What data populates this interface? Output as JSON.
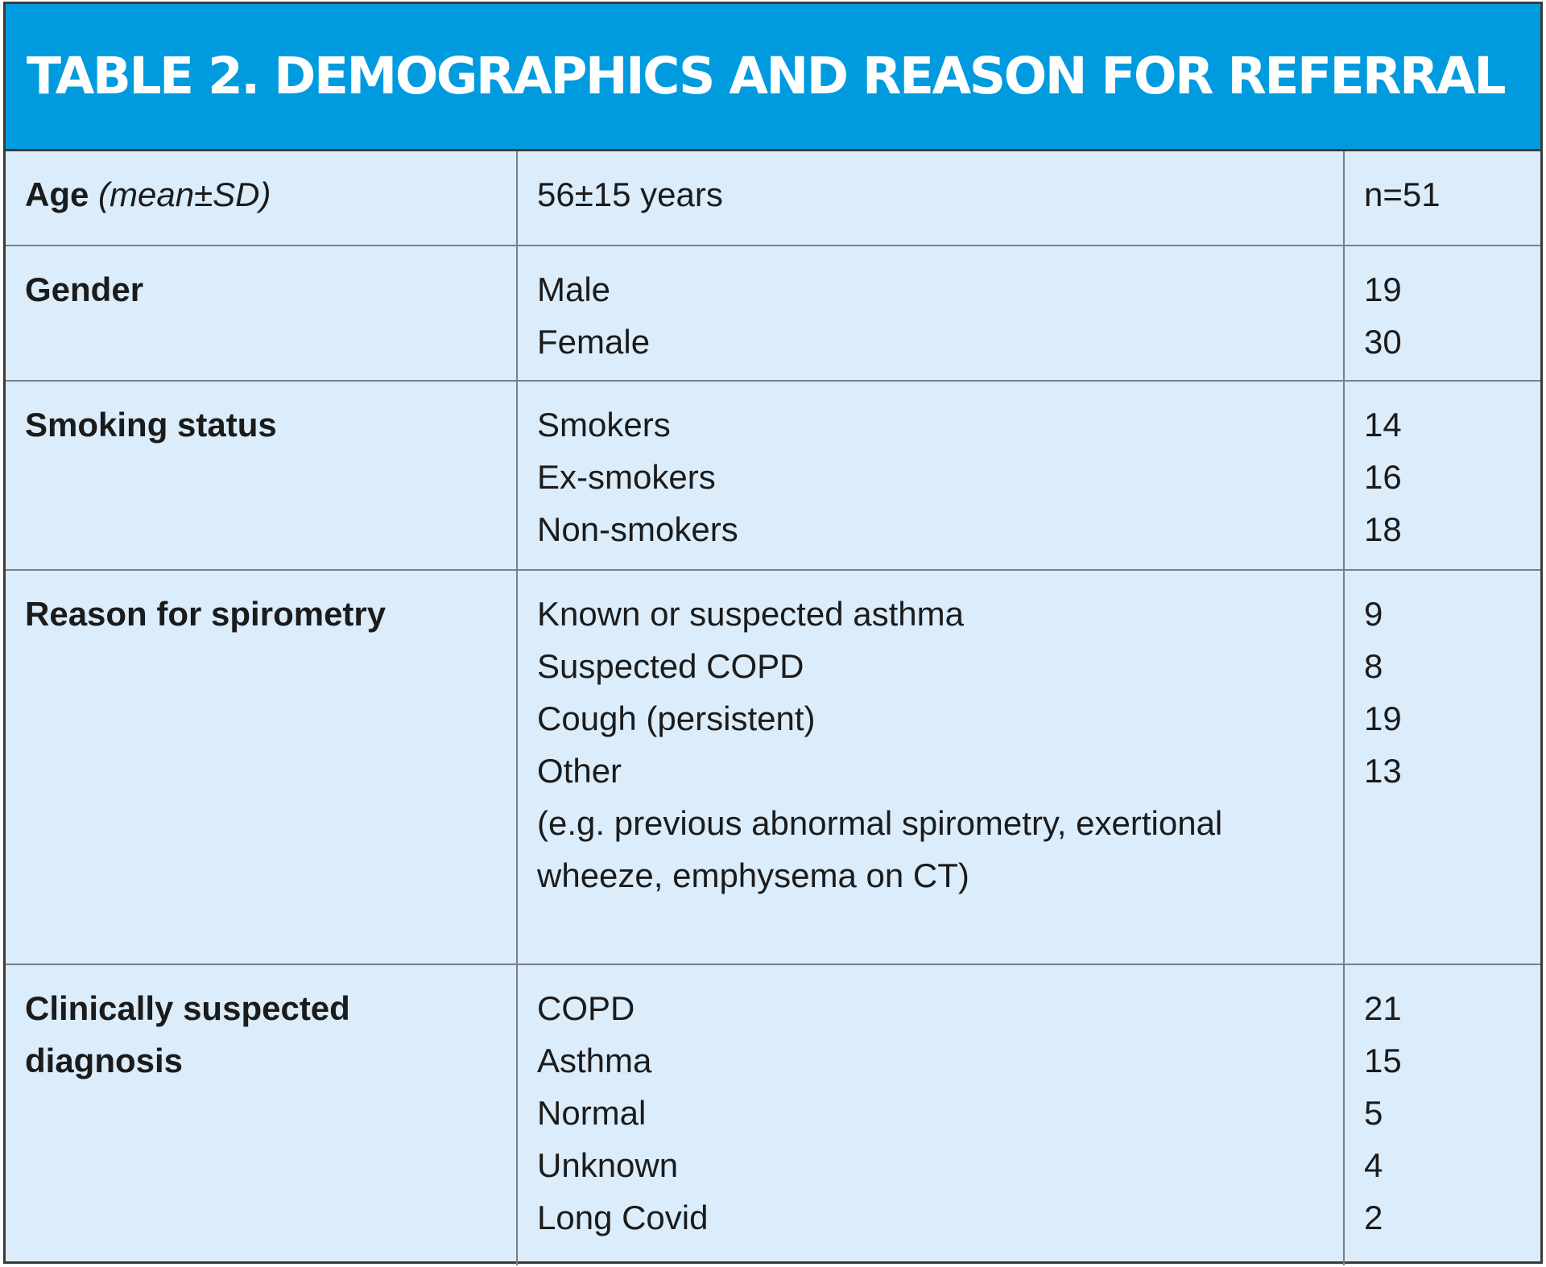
{
  "table": {
    "title": "TABLE 2. DEMOGRAPHICS AND REASON FOR REFERRAL",
    "rows": [
      {
        "label": "Age",
        "label_suffix": "(mean±SD)",
        "items": [
          "56±15 years"
        ],
        "values": [
          "n=51"
        ]
      },
      {
        "label": "Gender",
        "items": [
          "Male",
          "Female"
        ],
        "values": [
          "19",
          "30"
        ]
      },
      {
        "label": "Smoking status",
        "items": [
          "Smokers",
          "Ex-smokers",
          "Non-smokers"
        ],
        "values": [
          "14",
          "16",
          "18"
        ]
      },
      {
        "label": "Reason for spirometry",
        "items": [
          "Known or suspected asthma",
          "Suspected COPD",
          "Cough (persistent)",
          "Other",
          "(e.g. previous abnormal spirometry, exertional wheeze, emphysema on CT)"
        ],
        "values": [
          "9",
          "8",
          "19",
          "13"
        ]
      },
      {
        "label": "Clinically suspected diagnosis",
        "items": [
          "COPD",
          "Asthma",
          "Normal",
          "Unknown",
          "Long Covid"
        ],
        "values": [
          "21",
          "15",
          "5",
          "4",
          "2"
        ]
      }
    ]
  }
}
